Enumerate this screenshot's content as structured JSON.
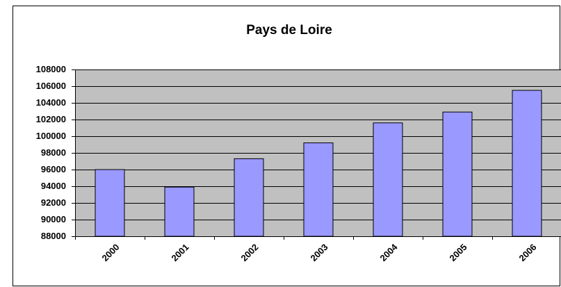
{
  "chart_data": {
    "type": "bar",
    "title": "Pays de Loire",
    "categories": [
      "2000",
      "2001",
      "2002",
      "2003",
      "2004",
      "2005",
      "2006"
    ],
    "values": [
      96000,
      93900,
      97300,
      99200,
      101600,
      102900,
      105500
    ],
    "color": "#9999ff",
    "ylim": [
      88000,
      108000
    ],
    "yticks": [
      88000,
      90000,
      92000,
      94000,
      96000,
      98000,
      100000,
      102000,
      104000,
      106000,
      108000
    ],
    "grid": true
  }
}
